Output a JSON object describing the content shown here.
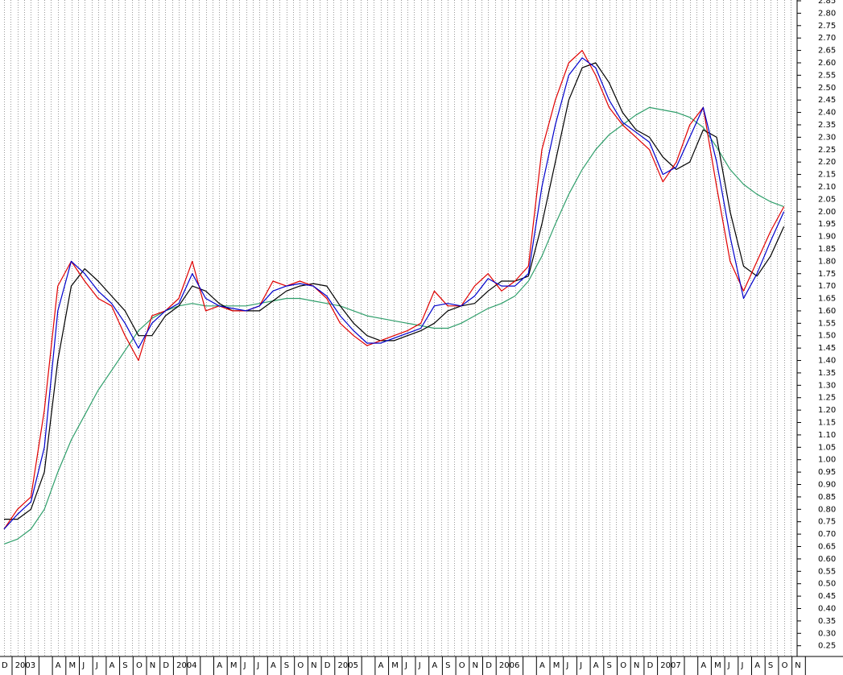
{
  "chart_data": {
    "type": "line",
    "categories": [
      "D",
      "2003",
      null,
      null,
      "A",
      "M",
      "J",
      "J",
      "A",
      "S",
      "O",
      "N",
      "D",
      "2004",
      null,
      null,
      "A",
      "M",
      "J",
      "J",
      "A",
      "S",
      "O",
      "N",
      "D",
      "2005",
      null,
      null,
      "A",
      "M",
      "J",
      "J",
      "A",
      "S",
      "O",
      "N",
      "D",
      "2006",
      null,
      null,
      "A",
      "M",
      "J",
      "J",
      "A",
      "S",
      "O",
      "N",
      "D",
      "2007",
      null,
      null,
      "A",
      "M",
      "J",
      "J",
      "A",
      "S",
      "O",
      "N"
    ],
    "series": [
      {
        "color": "#2e9e6a",
        "values": [
          0.66,
          0.68,
          0.72,
          0.8,
          0.95,
          1.08,
          1.18,
          1.28,
          1.36,
          1.44,
          1.52,
          1.57,
          1.6,
          1.62,
          1.63,
          1.62,
          1.62,
          1.62,
          1.62,
          1.63,
          1.64,
          1.65,
          1.65,
          1.64,
          1.63,
          1.62,
          1.6,
          1.58,
          1.57,
          1.56,
          1.55,
          1.54,
          1.53,
          1.53,
          1.55,
          1.58,
          1.61,
          1.63,
          1.66,
          1.72,
          1.82,
          1.95,
          2.07,
          2.17,
          2.25,
          2.31,
          2.35,
          2.39,
          2.42,
          2.41,
          2.4,
          2.38,
          2.34,
          2.26,
          2.17,
          2.11,
          2.07,
          2.04,
          2.02,
          null
        ]
      },
      {
        "color": "#000000",
        "values": [
          0.76,
          0.76,
          0.8,
          0.95,
          1.4,
          1.7,
          1.77,
          1.72,
          1.66,
          1.6,
          1.5,
          1.5,
          1.58,
          1.62,
          1.7,
          1.68,
          1.63,
          1.6,
          1.6,
          1.6,
          1.64,
          1.68,
          1.7,
          1.71,
          1.7,
          1.62,
          1.55,
          1.5,
          1.48,
          1.48,
          1.5,
          1.52,
          1.55,
          1.6,
          1.62,
          1.63,
          1.68,
          1.72,
          1.72,
          1.74,
          1.95,
          2.2,
          2.45,
          2.58,
          2.6,
          2.52,
          2.4,
          2.33,
          2.3,
          2.22,
          2.17,
          2.2,
          2.33,
          2.3,
          2.0,
          1.78,
          1.74,
          1.82,
          1.94,
          null
        ]
      },
      {
        "color": "#e00000",
        "values": [
          0.72,
          0.8,
          0.85,
          1.2,
          1.7,
          1.8,
          1.72,
          1.65,
          1.62,
          1.5,
          1.4,
          1.58,
          1.6,
          1.65,
          1.8,
          1.6,
          1.62,
          1.6,
          1.6,
          1.62,
          1.72,
          1.7,
          1.72,
          1.7,
          1.65,
          1.55,
          1.5,
          1.46,
          1.48,
          1.5,
          1.52,
          1.55,
          1.68,
          1.62,
          1.62,
          1.7,
          1.75,
          1.68,
          1.72,
          1.78,
          2.25,
          2.45,
          2.6,
          2.65,
          2.55,
          2.42,
          2.35,
          2.3,
          2.25,
          2.12,
          2.2,
          2.35,
          2.42,
          2.1,
          1.8,
          1.68,
          1.8,
          1.92,
          2.02,
          null
        ]
      },
      {
        "color": "#0000cc",
        "values": [
          0.72,
          0.78,
          0.83,
          1.05,
          1.6,
          1.8,
          1.75,
          1.68,
          1.63,
          1.55,
          1.45,
          1.55,
          1.6,
          1.63,
          1.75,
          1.65,
          1.62,
          1.61,
          1.6,
          1.62,
          1.68,
          1.7,
          1.71,
          1.7,
          1.66,
          1.58,
          1.52,
          1.47,
          1.47,
          1.49,
          1.51,
          1.53,
          1.62,
          1.63,
          1.62,
          1.66,
          1.73,
          1.7,
          1.7,
          1.75,
          2.1,
          2.35,
          2.55,
          2.62,
          2.58,
          2.45,
          2.36,
          2.32,
          2.28,
          2.15,
          2.18,
          2.3,
          2.42,
          2.2,
          1.9,
          1.65,
          1.75,
          1.88,
          2.0,
          null
        ]
      }
    ],
    "ylim": [
      0.21,
      2.85
    ],
    "yticks": [
      {
        "value": 0.25,
        "label": "0.25"
      },
      {
        "value": 0.3,
        "label": "0.30"
      },
      {
        "value": 0.35,
        "label": "0.35"
      },
      {
        "value": 0.4,
        "label": "0.40"
      },
      {
        "value": 0.45,
        "label": "0.45"
      },
      {
        "value": 0.5,
        "label": "0.50"
      },
      {
        "value": 0.55,
        "label": "0.55"
      },
      {
        "value": 0.6,
        "label": "0.60"
      },
      {
        "value": 0.65,
        "label": "0.65"
      },
      {
        "value": 0.7,
        "label": "0.70"
      },
      {
        "value": 0.75,
        "label": "0.75"
      },
      {
        "value": 0.8,
        "label": "0.80"
      },
      {
        "value": 0.85,
        "label": "0.85"
      },
      {
        "value": 0.9,
        "label": "0.90"
      },
      {
        "value": 0.95,
        "label": "0.95"
      },
      {
        "value": 1,
        "label": "1.00"
      },
      {
        "value": 1.05,
        "label": "1.05"
      },
      {
        "value": 1.1,
        "label": "1.10"
      },
      {
        "value": 1.15,
        "label": "1.15"
      },
      {
        "value": 1.2,
        "label": "1.20"
      },
      {
        "value": 1.25,
        "label": "1.25"
      },
      {
        "value": 1.3,
        "label": "1.30"
      },
      {
        "value": 1.35,
        "label": "1.35"
      },
      {
        "value": 1.4,
        "label": "1.40"
      },
      {
        "value": 1.45,
        "label": "1.45"
      },
      {
        "value": 1.5,
        "label": "1.50"
      },
      {
        "value": 1.55,
        "label": "1.55"
      },
      {
        "value": 1.6,
        "label": "1.60"
      },
      {
        "value": 1.65,
        "label": "1.65"
      },
      {
        "value": 1.7,
        "label": "1.70"
      },
      {
        "value": 1.75,
        "label": "1.75"
      },
      {
        "value": 1.8,
        "label": "1.80"
      },
      {
        "value": 1.85,
        "label": "1.85"
      },
      {
        "value": 1.9,
        "label": "1.90"
      },
      {
        "value": 1.95,
        "label": "1.95"
      },
      {
        "value": 2,
        "label": "2.00"
      },
      {
        "value": 2.05,
        "label": "2.05"
      },
      {
        "value": 2.1,
        "label": "2.10"
      },
      {
        "value": 2.15,
        "label": "2.15"
      },
      {
        "value": 2.2,
        "label": "2.20"
      },
      {
        "value": 2.25,
        "label": "2.25"
      },
      {
        "value": 2.3,
        "label": "2.30"
      },
      {
        "value": 2.35,
        "label": "2.35"
      },
      {
        "value": 2.4,
        "label": "2.40"
      },
      {
        "value": 2.45,
        "label": "2.45"
      },
      {
        "value": 2.5,
        "label": "2.50"
      },
      {
        "value": 2.55,
        "label": "2.55"
      },
      {
        "value": 2.6,
        "label": "2.60"
      },
      {
        "value": 2.65,
        "label": "2.65"
      },
      {
        "value": 2.7,
        "label": "2.70"
      },
      {
        "value": 2.75,
        "label": "2.75"
      },
      {
        "value": 2.8,
        "label": "2.80"
      },
      {
        "value": 2.85,
        "label": "2.85"
      }
    ]
  }
}
